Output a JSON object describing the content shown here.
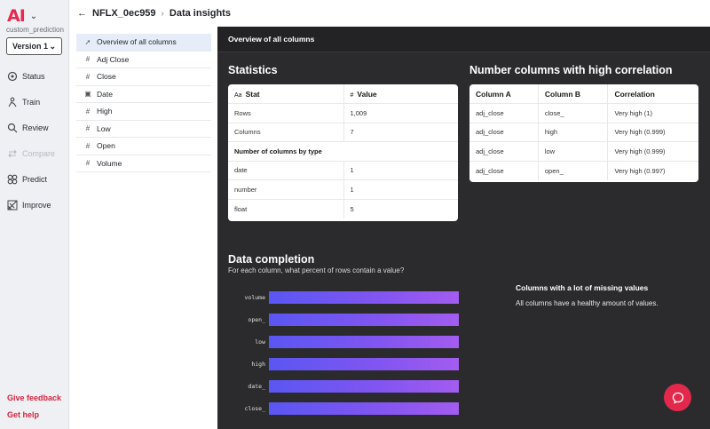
{
  "app": {
    "logo": "AI",
    "project_name": "custom_prediction",
    "version": "Version 1"
  },
  "nav": [
    {
      "label": "Status",
      "icon": "status-icon"
    },
    {
      "label": "Train",
      "icon": "train-icon"
    },
    {
      "label": "Review",
      "icon": "review-icon"
    },
    {
      "label": "Compare",
      "icon": "compare-icon",
      "disabled": true
    },
    {
      "label": "Predict",
      "icon": "predict-icon"
    },
    {
      "label": "Improve",
      "icon": "improve-icon"
    }
  ],
  "footer_links": {
    "feedback": "Give feedback",
    "help": "Get help"
  },
  "header": {
    "dataset": "NFLX_0ec959",
    "page": "Data insights"
  },
  "columns": [
    {
      "label": "Overview of all columns",
      "icon": "trend-icon"
    },
    {
      "label": "Adj Close",
      "icon": "number-icon"
    },
    {
      "label": "Close",
      "icon": "number-icon"
    },
    {
      "label": "Date",
      "icon": "calendar-icon"
    },
    {
      "label": "High",
      "icon": "number-icon"
    },
    {
      "label": "Low",
      "icon": "number-icon"
    },
    {
      "label": "Open",
      "icon": "number-icon"
    },
    {
      "label": "Volume",
      "icon": "number-icon"
    }
  ],
  "panel_title": "Overview of all columns",
  "statistics": {
    "title": "Statistics",
    "col_stat": "Stat",
    "col_value": "Value",
    "rows": [
      {
        "stat": "Rows",
        "value": "1,009"
      },
      {
        "stat": "Columns",
        "value": "7"
      }
    ],
    "types_heading": "Number of columns by type",
    "types": [
      {
        "stat": "date",
        "value": "1"
      },
      {
        "stat": "number",
        "value": "1"
      },
      {
        "stat": "float",
        "value": "5"
      }
    ]
  },
  "correlation": {
    "title": "Number columns with high correlation",
    "headers": [
      "Column A",
      "Column B",
      "Correlation"
    ],
    "rows": [
      [
        "adj_close",
        "close_",
        "Very high (1)"
      ],
      [
        "adj_close",
        "high",
        "Very high (0.999)"
      ],
      [
        "adj_close",
        "low",
        "Very high (0.999)"
      ],
      [
        "adj_close",
        "open_",
        "Very high (0.997)"
      ]
    ]
  },
  "completion": {
    "title": "Data completion",
    "subtitle": "For each column, what percent of rows contain a value?",
    "bars": [
      {
        "label": "volume",
        "percent": 100
      },
      {
        "label": "open_",
        "percent": 100
      },
      {
        "label": "low",
        "percent": 100
      },
      {
        "label": "high",
        "percent": 100
      },
      {
        "label": "date_",
        "percent": 100
      },
      {
        "label": "close_",
        "percent": 100
      }
    ]
  },
  "missing": {
    "title": "Columns with a lot of missing values",
    "text": "All columns have a healthy amount of values."
  },
  "colors": {
    "brand": "#e8284f",
    "panel_bg": "#2b2b2d",
    "bar_start": "#5a56f2",
    "bar_end": "#a35cf0"
  }
}
